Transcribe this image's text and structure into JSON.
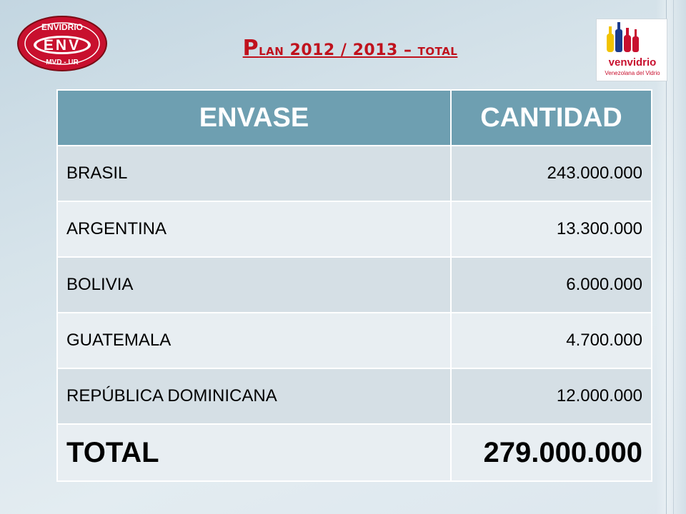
{
  "header": {
    "title_first_letter": "P",
    "title_rest": "lan 2012 / 2013 – total",
    "left_logo": {
      "top_text": "ENVIDRIO",
      "main_text": "ENV",
      "bottom_text": "MVD - UR"
    },
    "right_logo": {
      "brand": "venvidrio",
      "tagline": "Venezolana del Vidrio"
    }
  },
  "table": {
    "columns": [
      "ENVASE",
      "CANTIDAD"
    ],
    "rows": [
      {
        "envase": "BRASIL",
        "cantidad": "243.000.000"
      },
      {
        "envase": "ARGENTINA",
        "cantidad": "13.300.000"
      },
      {
        "envase": "BOLIVIA",
        "cantidad": "6.000.000"
      },
      {
        "envase": "GUATEMALA",
        "cantidad": "4.700.000"
      },
      {
        "envase": "REPÚBLICA DOMINICANA",
        "cantidad": "12.000.000"
      }
    ],
    "total": {
      "label": "TOTAL",
      "value": "279.000.000"
    }
  },
  "colors": {
    "title": "#c0121d",
    "header_fill": "#6e9fb1",
    "row_odd": "#d5dfe5",
    "row_even": "#e8eef2",
    "logo_red": "#c8102e"
  }
}
